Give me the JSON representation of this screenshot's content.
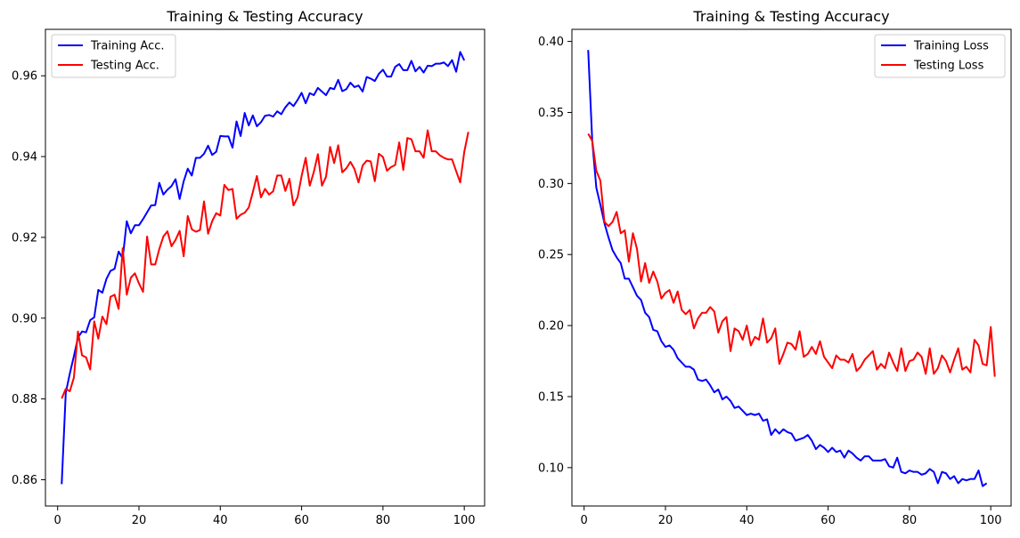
{
  "chart_data": [
    {
      "type": "line",
      "title": "Training & Testing Accuracy",
      "xlabel": "",
      "ylabel": "",
      "xlim": [
        -3,
        105
      ],
      "ylim": [
        0.8535,
        0.9715
      ],
      "xticks": [
        0,
        20,
        40,
        60,
        80,
        100
      ],
      "yticks": [
        0.86,
        0.88,
        0.9,
        0.92,
        0.94,
        0.96
      ],
      "legend_position": "upper-left",
      "grid": false,
      "series": [
        {
          "name": "Training Acc.",
          "color": "#0000ff",
          "x_start": 1,
          "values": [
            0.8589,
            0.8815,
            0.8863,
            0.8906,
            0.8952,
            0.8967,
            0.8965,
            0.8995,
            0.9002,
            0.907,
            0.9063,
            0.9097,
            0.9117,
            0.9122,
            0.9165,
            0.9148,
            0.924,
            0.921,
            0.923,
            0.923,
            0.9245,
            0.9262,
            0.9279,
            0.928,
            0.9335,
            0.9306,
            0.9318,
            0.9327,
            0.9344,
            0.9295,
            0.9339,
            0.937,
            0.9353,
            0.9397,
            0.9397,
            0.9407,
            0.9427,
            0.9404,
            0.9412,
            0.9451,
            0.945,
            0.945,
            0.9422,
            0.9487,
            0.9451,
            0.9508,
            0.9477,
            0.9502,
            0.9475,
            0.9485,
            0.9501,
            0.9503,
            0.9499,
            0.9512,
            0.9505,
            0.9522,
            0.9534,
            0.9525,
            0.954,
            0.9558,
            0.9532,
            0.9557,
            0.9552,
            0.957,
            0.9561,
            0.9552,
            0.957,
            0.9567,
            0.959,
            0.9562,
            0.9567,
            0.9583,
            0.9572,
            0.9576,
            0.9561,
            0.9597,
            0.9593,
            0.9587,
            0.9605,
            0.9615,
            0.9598,
            0.9598,
            0.9622,
            0.9629,
            0.9614,
            0.9614,
            0.9637,
            0.9611,
            0.9622,
            0.9608,
            0.9625,
            0.9624,
            0.963,
            0.963,
            0.9633,
            0.9624,
            0.9639,
            0.961,
            0.9659,
            0.9638
          ]
        },
        {
          "name": "Testing Acc.",
          "color": "#ff0000",
          "x_start": 1,
          "values": [
            0.8801,
            0.8825,
            0.8819,
            0.8853,
            0.8967,
            0.8908,
            0.8903,
            0.8873,
            0.8992,
            0.8949,
            0.9004,
            0.8985,
            0.9053,
            0.9058,
            0.9023,
            0.9173,
            0.9058,
            0.91,
            0.9111,
            0.9086,
            0.9065,
            0.9202,
            0.9133,
            0.9133,
            0.9171,
            0.9202,
            0.9215,
            0.9178,
            0.9194,
            0.9216,
            0.9153,
            0.9253,
            0.922,
            0.9214,
            0.9218,
            0.9289,
            0.9209,
            0.924,
            0.926,
            0.9254,
            0.933,
            0.9317,
            0.932,
            0.9246,
            0.9256,
            0.9261,
            0.9274,
            0.9312,
            0.9352,
            0.9299,
            0.932,
            0.9306,
            0.9314,
            0.9353,
            0.9353,
            0.9315,
            0.9345,
            0.9279,
            0.9299,
            0.9352,
            0.9397,
            0.9328,
            0.9362,
            0.9406,
            0.9328,
            0.935,
            0.9424,
            0.9384,
            0.9428,
            0.9361,
            0.9371,
            0.9387,
            0.9369,
            0.9336,
            0.9378,
            0.939,
            0.9388,
            0.9339,
            0.9407,
            0.9399,
            0.9365,
            0.9374,
            0.9379,
            0.9435,
            0.9367,
            0.9446,
            0.9443,
            0.9413,
            0.9413,
            0.9397,
            0.9465,
            0.9413,
            0.9413,
            0.9403,
            0.9397,
            0.9393,
            0.9393,
            0.9364,
            0.9336,
            0.9412,
            0.9461
          ]
        }
      ]
    },
    {
      "type": "line",
      "title": "Training & Testing Accuracy",
      "xlabel": "",
      "ylabel": "",
      "xlim": [
        -3,
        105
      ],
      "ylim": [
        0.073,
        0.4085
      ],
      "xticks": [
        0,
        20,
        40,
        60,
        80,
        100
      ],
      "yticks": [
        0.1,
        0.15,
        0.2,
        0.25,
        0.3,
        0.35,
        0.4
      ],
      "legend_position": "upper-right",
      "grid": false,
      "series": [
        {
          "name": "Training Loss",
          "color": "#0000ff",
          "x_start": 1,
          "values": [
            0.394,
            0.33,
            0.297,
            0.285,
            0.272,
            0.262,
            0.253,
            0.248,
            0.244,
            0.233,
            0.233,
            0.227,
            0.221,
            0.218,
            0.209,
            0.206,
            0.197,
            0.196,
            0.189,
            0.185,
            0.186,
            0.183,
            0.177,
            0.174,
            0.171,
            0.171,
            0.169,
            0.162,
            0.161,
            0.162,
            0.158,
            0.153,
            0.155,
            0.148,
            0.15,
            0.147,
            0.142,
            0.143,
            0.14,
            0.137,
            0.138,
            0.137,
            0.138,
            0.133,
            0.134,
            0.123,
            0.127,
            0.124,
            0.127,
            0.125,
            0.124,
            0.119,
            0.12,
            0.121,
            0.123,
            0.119,
            0.113,
            0.116,
            0.114,
            0.111,
            0.114,
            0.111,
            0.112,
            0.107,
            0.112,
            0.11,
            0.107,
            0.105,
            0.108,
            0.108,
            0.105,
            0.105,
            0.105,
            0.106,
            0.101,
            0.1,
            0.107,
            0.097,
            0.096,
            0.098,
            0.097,
            0.097,
            0.095,
            0.096,
            0.099,
            0.097,
            0.089,
            0.097,
            0.096,
            0.092,
            0.094,
            0.089,
            0.092,
            0.091,
            0.092,
            0.092,
            0.098,
            0.087,
            0.089
          ]
        },
        {
          "name": "Testing Loss",
          "color": "#ff0000",
          "x_start": 1,
          "values": [
            0.335,
            0.33,
            0.309,
            0.302,
            0.273,
            0.27,
            0.273,
            0.28,
            0.265,
            0.267,
            0.245,
            0.265,
            0.254,
            0.231,
            0.244,
            0.23,
            0.238,
            0.231,
            0.219,
            0.223,
            0.225,
            0.216,
            0.224,
            0.211,
            0.208,
            0.211,
            0.198,
            0.205,
            0.209,
            0.209,
            0.213,
            0.21,
            0.195,
            0.203,
            0.206,
            0.182,
            0.198,
            0.196,
            0.19,
            0.2,
            0.186,
            0.192,
            0.19,
            0.205,
            0.188,
            0.191,
            0.198,
            0.173,
            0.18,
            0.188,
            0.187,
            0.183,
            0.196,
            0.178,
            0.18,
            0.185,
            0.18,
            0.189,
            0.178,
            0.174,
            0.17,
            0.179,
            0.176,
            0.176,
            0.174,
            0.18,
            0.168,
            0.171,
            0.176,
            0.179,
            0.182,
            0.169,
            0.173,
            0.17,
            0.181,
            0.174,
            0.168,
            0.184,
            0.168,
            0.175,
            0.176,
            0.181,
            0.178,
            0.166,
            0.184,
            0.166,
            0.17,
            0.179,
            0.175,
            0.167,
            0.176,
            0.184,
            0.169,
            0.171,
            0.167,
            0.19,
            0.186,
            0.173,
            0.172,
            0.199,
            0.164
          ]
        }
      ]
    }
  ]
}
